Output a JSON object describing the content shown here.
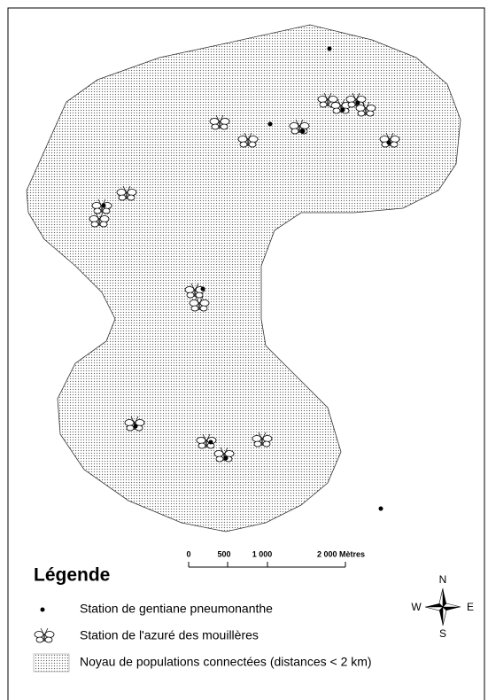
{
  "scale_bar": {
    "labels": [
      "0",
      "500",
      "1 000",
      "2 000 Mètres"
    ]
  },
  "legend": {
    "title": "Légende",
    "items": [
      "Station de gentiane pneumonanthe",
      "Station de l'azuré des mouillères",
      "Noyau de populations connectées (distances < 2 km)"
    ]
  },
  "compass": {
    "north": "N",
    "south": "S",
    "west": "W",
    "east": "E"
  }
}
